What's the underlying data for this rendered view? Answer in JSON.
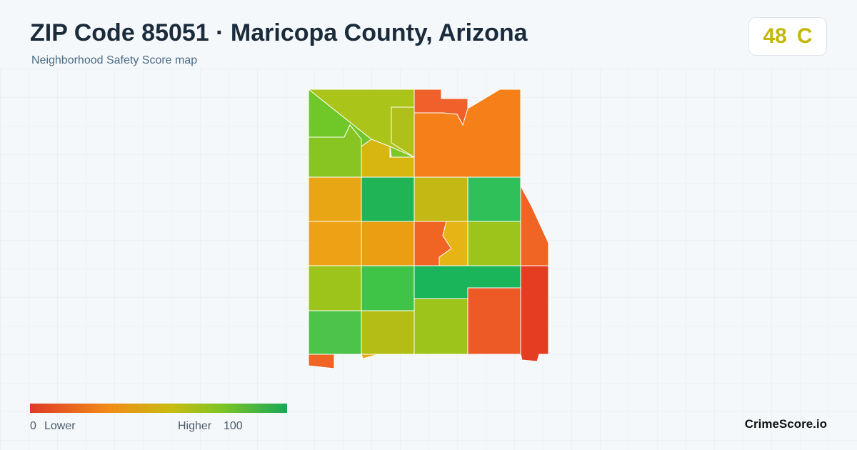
{
  "header": {
    "title": "ZIP Code 85051 · Maricopa County, Arizona",
    "subtitle": "Neighborhood Safety Score map"
  },
  "score": {
    "value": 48,
    "grade": "C"
  },
  "legend": {
    "min": 0,
    "min_label": "Lower",
    "max_label": "Higher",
    "max": 100
  },
  "brand": "CrimeScore.io"
}
